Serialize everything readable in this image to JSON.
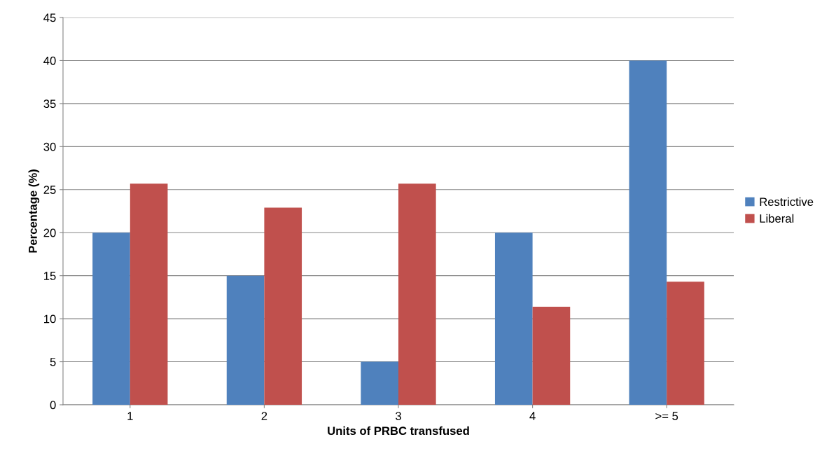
{
  "chart_data": {
    "type": "bar",
    "xlabel": "Units of PRBC transfused",
    "ylabel": "Percentage (%)",
    "categories": [
      "1",
      "2",
      "3",
      "4",
      ">= 5"
    ],
    "series": [
      {
        "name": "Restrictive",
        "color": "#4f81bd",
        "values": [
          20,
          15,
          5,
          20,
          40
        ]
      },
      {
        "name": "Liberal",
        "color": "#c0504d",
        "values": [
          25.7,
          22.9,
          25.7,
          11.4,
          14.3
        ]
      }
    ],
    "ylim": [
      0,
      45
    ],
    "yticks": [
      0,
      5,
      10,
      15,
      20,
      25,
      30,
      35,
      40,
      45
    ],
    "grid": "y",
    "legend": "right"
  }
}
